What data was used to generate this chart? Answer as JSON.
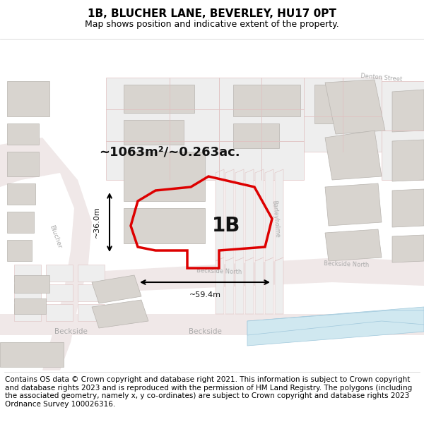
{
  "title": "1B, BLUCHER LANE, BEVERLEY, HU17 0PT",
  "subtitle": "Map shows position and indicative extent of the property.",
  "footer": "Contains OS data © Crown copyright and database right 2021. This information is subject to Crown copyright and database rights 2023 and is reproduced with the permission of HM Land Registry. The polygons (including the associated geometry, namely x, y co-ordinates) are subject to Crown copyright and database rights 2023 Ordnance Survey 100026316.",
  "area_text": "~1063m²/~0.263ac.",
  "label": "1B",
  "width_text": "~59.4m",
  "height_text": "~36.0m",
  "map_bg": "#ffffff",
  "parcel_color": "#eeeeee",
  "parcel_edge": "#e0c0c0",
  "building_color": "#d8d4cf",
  "building_edge": "#b8b4af",
  "road_color": "#f0e8e8",
  "road_edge": "#e8c8c8",
  "highlight_color": "#dd0000",
  "water_color": "#d0e8f0",
  "street_label_color": "#aaaaaa",
  "title_fontsize": 11,
  "subtitle_fontsize": 9,
  "footer_fontsize": 7.5
}
